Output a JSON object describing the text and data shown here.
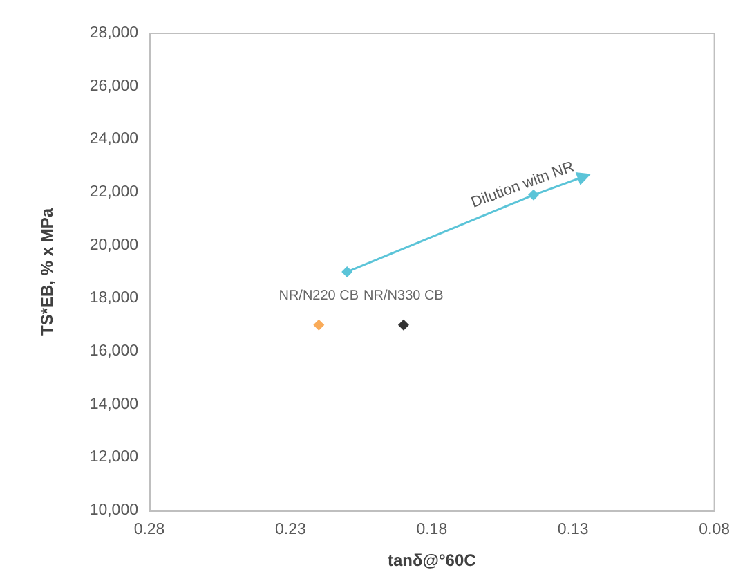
{
  "chart_data": {
    "type": "scatter",
    "xlabel": "tanδ@°60C",
    "ylabel": "TS*EB, % x MPa",
    "xlim": [
      0.28,
      0.08
    ],
    "xticks": [
      0.28,
      0.23,
      0.18,
      0.13,
      0.08
    ],
    "ylim": [
      10000,
      28000
    ],
    "yticks": [
      {
        "value": 10000,
        "label": "10,000"
      },
      {
        "value": 12000,
        "label": "12,000"
      },
      {
        "value": 14000,
        "label": "14,000"
      },
      {
        "value": 16000,
        "label": "16,000"
      },
      {
        "value": 18000,
        "label": "18,000"
      },
      {
        "value": 20000,
        "label": "20,000"
      },
      {
        "value": 22000,
        "label": "22,000"
      },
      {
        "value": 24000,
        "label": "24,000"
      },
      {
        "value": 26000,
        "label": "26,000"
      },
      {
        "value": 28000,
        "label": "28,000"
      }
    ],
    "series": [
      {
        "type": "line",
        "color": "#5bc4d8",
        "x": [
          0.21,
          0.144,
          0.126
        ],
        "values": [
          19000,
          21900,
          22600
        ]
      },
      {
        "name": "NR/N220 CB",
        "color": "#f7962f",
        "x": [
          0.22
        ],
        "values": [
          17000
        ]
      },
      {
        "name": "NR/N330 CB",
        "color": "#000000",
        "x": [
          0.19
        ],
        "values": [
          17000
        ]
      }
    ],
    "annotations": [
      "Dilution witn NR"
    ],
    "marker": "diamond",
    "grid": false,
    "legend": false
  }
}
